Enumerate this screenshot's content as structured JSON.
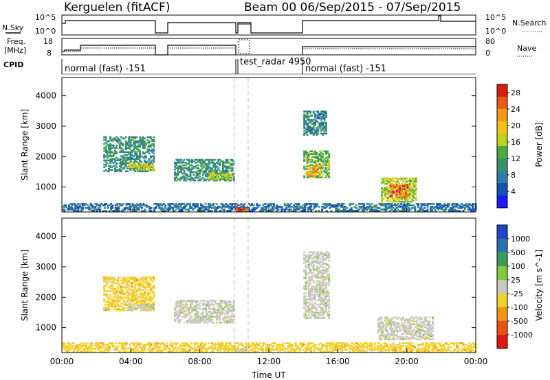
{
  "header": {
    "title": "Kerguelen (fitACF)",
    "beam_info": "Beam 00   06/Sep/2015 - 07/Sep/2015"
  },
  "info_panels": {
    "sky_label": "N.Sky",
    "sky_ticks": [
      "10^5",
      "10^0"
    ],
    "search_label": "N.Search",
    "search_ticks": [
      "10^5",
      "10^0"
    ],
    "freq_label_1": "Freq.",
    "freq_label_2": "[MHz]",
    "freq_ticks": [
      "18",
      "8"
    ],
    "nave_label": "Nave",
    "nave_ticks": [
      "80",
      "0"
    ],
    "cpid_label": "CPID",
    "cpid_segments": [
      {
        "label": "normal (fast) -151",
        "start_hr": 0,
        "end_hr": 10.0
      },
      {
        "label": "test_radar 4950",
        "start_hr": 10.0,
        "end_hr": 10.8
      },
      {
        "label": "normal (fast) -151",
        "start_hr": 13.85,
        "end_hr": 24
      }
    ]
  },
  "chart_data": [
    {
      "type": "heatmap",
      "title": "",
      "xlabel": "",
      "ylabel": "Slant Range [km]",
      "xlim": [
        0,
        24
      ],
      "ylim": [
        180,
        4600
      ],
      "yticks": [
        "1000",
        "2000",
        "3000",
        "4000"
      ],
      "colorbar_label": "Power [dB]",
      "colorbar_ticks": [
        "4",
        "8",
        "12",
        "16",
        "20",
        "24",
        "28"
      ],
      "colorbar_range": [
        0,
        30
      ],
      "colorbar_colors": [
        "#1a1aff",
        "#1a4fb3",
        "#2e7fa6",
        "#3b8f6a",
        "#4aaa3a",
        "#b8d21e",
        "#f0c419",
        "#f09a16",
        "#ea5a13",
        "#d81d10"
      ],
      "regions": [
        {
          "t0": 2.4,
          "t1": 5.3,
          "r0": 1500,
          "r1": 2650,
          "v": 10
        },
        {
          "t0": 3.8,
          "t1": 5.3,
          "r0": 1550,
          "r1": 1750,
          "v": 18
        },
        {
          "t0": 6.5,
          "t1": 10.0,
          "r0": 1200,
          "r1": 1900,
          "v": 10
        },
        {
          "t0": 8.5,
          "t1": 9.9,
          "r0": 1250,
          "r1": 1450,
          "v": 17
        },
        {
          "t0": 14.0,
          "t1": 15.3,
          "r0": 2700,
          "r1": 3500,
          "v": 9
        },
        {
          "t0": 14.0,
          "t1": 15.5,
          "r0": 1300,
          "r1": 2200,
          "v": 14
        },
        {
          "t0": 14.2,
          "t1": 15.0,
          "r0": 1350,
          "r1": 1700,
          "v": 21
        },
        {
          "t0": 18.5,
          "t1": 20.5,
          "r0": 500,
          "r1": 1300,
          "v": 17
        },
        {
          "t0": 19.0,
          "t1": 20.0,
          "r0": 650,
          "r1": 1100,
          "v": 25
        },
        {
          "t0": 0.0,
          "t1": 24.0,
          "r0": 200,
          "r1": 450,
          "v": 7
        },
        {
          "t0": 10.1,
          "t1": 10.8,
          "r0": 200,
          "r1": 330,
          "v": 27
        }
      ]
    },
    {
      "type": "heatmap",
      "title": "",
      "xlabel": "Time UT",
      "ylabel": "Slant Range [km]",
      "xlim": [
        0,
        24
      ],
      "ylim": [
        180,
        4600
      ],
      "xticks": [
        "00:00",
        "04:00",
        "08:00",
        "12:00",
        "16:00",
        "20:00",
        "00:00"
      ],
      "yticks": [
        "1000",
        "2000",
        "3000",
        "4000"
      ],
      "colorbar_label": "Velocity [m s^-1]",
      "colorbar_ticks": [
        "1000",
        "500",
        "100",
        "25",
        "-25",
        "-100",
        "-500",
        "-1000"
      ],
      "colorbar_colors": [
        "#2045c8",
        "#2e6fb0",
        "#3a9b5a",
        "#7ccc3c",
        "#c8c8c0",
        "#f3d12c",
        "#f09418",
        "#ea5214",
        "#e01612"
      ],
      "regions": [
        {
          "t0": 2.4,
          "t1": 5.3,
          "r0": 1550,
          "r1": 2650,
          "v": 5
        },
        {
          "t0": 3.8,
          "t1": 5.3,
          "r0": 1550,
          "r1": 1750,
          "v": 4
        },
        {
          "t0": 6.5,
          "t1": 10.0,
          "r0": 1150,
          "r1": 1900,
          "v": 4
        },
        {
          "t0": 14.0,
          "t1": 15.5,
          "r0": 1300,
          "r1": 3500,
          "v": 4
        },
        {
          "t0": 18.3,
          "t1": 21.5,
          "r0": 600,
          "r1": 1350,
          "v": 4
        },
        {
          "t0": 0.0,
          "t1": 24.0,
          "r0": 200,
          "r1": 500,
          "v": 5
        },
        {
          "t0": 10.1,
          "t1": 10.8,
          "r0": 200,
          "r1": 330,
          "v": 4
        }
      ]
    }
  ]
}
